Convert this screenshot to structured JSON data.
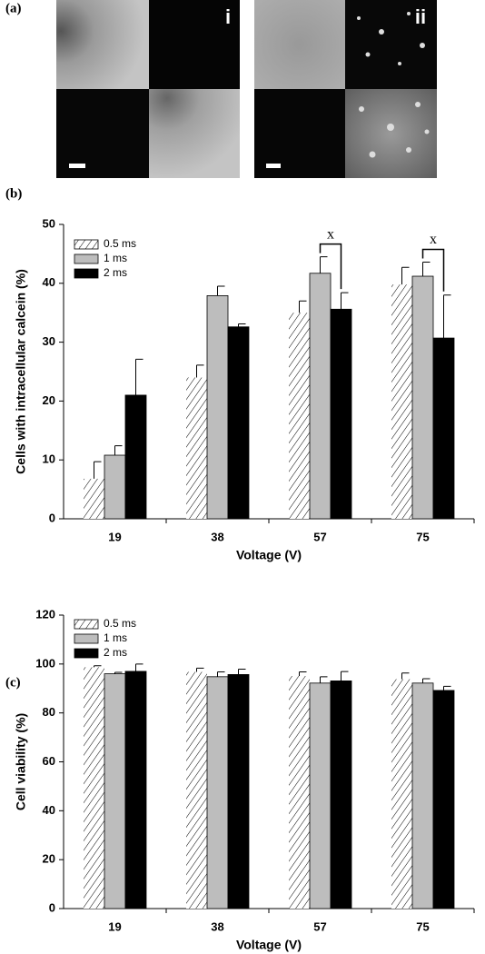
{
  "panel_labels": [
    "(a)",
    "(b)",
    "(c)"
  ],
  "images": {
    "labels": [
      "i",
      "ii"
    ]
  },
  "chart_data": [
    {
      "type": "bar",
      "xlabel": "Voltage (V)",
      "ylabel": "Cells with intracellular calcein (%)",
      "categories": [
        "19",
        "38",
        "57",
        "75"
      ],
      "series": [
        {
          "name": "0.5 ms",
          "color": "#ffffff",
          "fill_style": "hatch",
          "values": [
            6.8,
            24,
            35,
            39.8
          ],
          "errors": [
            2.9,
            2.1,
            2,
            2.9
          ]
        },
        {
          "name": "1 ms",
          "color": "#bdbdbd",
          "values": [
            10.8,
            37.9,
            41.7,
            41.2
          ],
          "errors": [
            1.6,
            1.6,
            2.8,
            2.4
          ]
        },
        {
          "name": "2 ms",
          "color": "#000000",
          "values": [
            21,
            32.6,
            35.6,
            30.7
          ],
          "errors": [
            6.1,
            0.5,
            2.8,
            7.3
          ]
        }
      ],
      "annotations": [
        {
          "text": "x",
          "category": "57"
        },
        {
          "text": "x",
          "category": "75"
        }
      ],
      "ylim": [
        0,
        50
      ],
      "yticks": [
        0,
        10,
        20,
        30,
        40,
        50
      ],
      "legend": "upper left"
    },
    {
      "type": "bar",
      "xlabel": "Voltage (V)",
      "ylabel": "Cell viability (%)",
      "categories": [
        "19",
        "38",
        "57",
        "75"
      ],
      "series": [
        {
          "name": "0.5 ms",
          "color": "#ffffff",
          "fill_style": "hatch",
          "values": [
            98.7,
            96.8,
            95.1,
            93.8
          ],
          "errors": [
            0.6,
            1.5,
            1.7,
            2.5
          ]
        },
        {
          "name": "1 ms",
          "color": "#bdbdbd",
          "values": [
            96,
            94.8,
            92.2,
            92.2
          ],
          "errors": [
            0.6,
            2,
            2.6,
            1.8
          ]
        },
        {
          "name": "2 ms",
          "color": "#000000",
          "values": [
            97,
            95.7,
            93.1,
            89.2
          ],
          "errors": [
            3,
            2.2,
            3.8,
            1.7
          ]
        }
      ],
      "ylim": [
        0,
        120
      ],
      "yticks": [
        0,
        20,
        40,
        60,
        80,
        100,
        120
      ],
      "legend": "upper left"
    }
  ]
}
